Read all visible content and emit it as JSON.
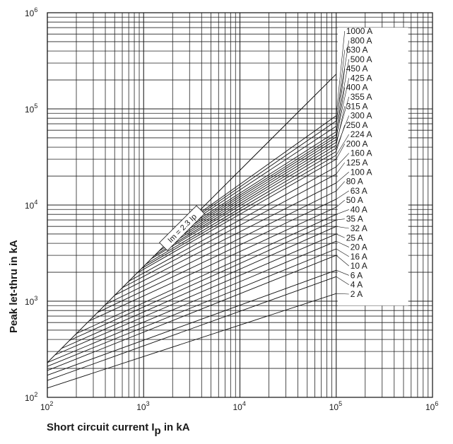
{
  "chart_data": {
    "type": "line",
    "title": "",
    "xlabel": "Short circuit current I",
    "xlabel_sub": "p",
    "xlabel_suffix": " in kA",
    "ylabel": "Peak let-thru in kA",
    "x_scale": "log",
    "y_scale": "log",
    "xlim": [
      100,
      1000000
    ],
    "ylim": [
      100,
      1000000
    ],
    "grid": true,
    "x_ticks": [
      {
        "base": "10",
        "exp": "2"
      },
      {
        "base": "10",
        "exp": "3"
      },
      {
        "base": "10",
        "exp": "4"
      },
      {
        "base": "10",
        "exp": "5"
      },
      {
        "base": "10",
        "exp": "6"
      }
    ],
    "y_ticks": [
      {
        "base": "10",
        "exp": "2"
      },
      {
        "base": "10",
        "exp": "3"
      },
      {
        "base": "10",
        "exp": "4"
      },
      {
        "base": "10",
        "exp": "5"
      },
      {
        "base": "10",
        "exp": "6"
      }
    ],
    "reference_line": {
      "label": "Im = 2.3 Ip",
      "points": [
        [
          100,
          230
        ],
        [
          100000,
          230000
        ]
      ]
    },
    "series": [
      {
        "name": "1000 A",
        "points": [
          [
            3100,
            7130
          ],
          [
            100000,
            85000
          ]
        ]
      },
      {
        "name": "800 A",
        "points": [
          [
            2800,
            6440
          ],
          [
            100000,
            75000
          ]
        ]
      },
      {
        "name": "630 A",
        "points": [
          [
            2500,
            5750
          ],
          [
            100000,
            66000
          ]
        ]
      },
      {
        "name": "500 A",
        "points": [
          [
            2200,
            5060
          ],
          [
            100000,
            58000
          ]
        ]
      },
      {
        "name": "450 A",
        "points": [
          [
            2000,
            4600
          ],
          [
            100000,
            54000
          ]
        ]
      },
      {
        "name": "425 A",
        "points": [
          [
            1800,
            4140
          ],
          [
            100000,
            51000
          ]
        ]
      },
      {
        "name": "400 A",
        "points": [
          [
            1600,
            3680
          ],
          [
            100000,
            48000
          ]
        ]
      },
      {
        "name": "355 A",
        "points": [
          [
            1450,
            3335
          ],
          [
            100000,
            45000
          ]
        ]
      },
      {
        "name": "315 A",
        "points": [
          [
            1300,
            2990
          ],
          [
            100000,
            42000
          ]
        ]
      },
      {
        "name": "300 A",
        "points": [
          [
            1200,
            2760
          ],
          [
            100000,
            39000
          ]
        ]
      },
      {
        "name": "250 A",
        "points": [
          [
            1050,
            2415
          ],
          [
            100000,
            36000
          ]
        ]
      },
      {
        "name": "224 A",
        "points": [
          [
            950,
            2185
          ],
          [
            100000,
            33000
          ]
        ]
      },
      {
        "name": "200 A",
        "points": [
          [
            850,
            1955
          ],
          [
            100000,
            30000
          ]
        ]
      },
      {
        "name": "160 A",
        "points": [
          [
            700,
            1610
          ],
          [
            100000,
            25000
          ]
        ]
      },
      {
        "name": "125 A",
        "points": [
          [
            600,
            1380
          ],
          [
            100000,
            21000
          ]
        ]
      },
      {
        "name": "100 A",
        "points": [
          [
            500,
            1150
          ],
          [
            100000,
            17000
          ]
        ]
      },
      {
        "name": "80 A",
        "points": [
          [
            400,
            920
          ],
          [
            100000,
            14000
          ]
        ]
      },
      {
        "name": "63 A",
        "points": [
          [
            330,
            760
          ],
          [
            100000,
            11500
          ]
        ]
      },
      {
        "name": "50 A",
        "points": [
          [
            270,
            620
          ],
          [
            100000,
            9500
          ]
        ]
      },
      {
        "name": "40 A",
        "points": [
          [
            200,
            460
          ],
          [
            100000,
            8000
          ]
        ]
      },
      {
        "name": "35 A",
        "points": [
          [
            170,
            391
          ],
          [
            100000,
            7000
          ]
        ]
      },
      {
        "name": "32 A",
        "points": [
          [
            140,
            322
          ],
          [
            100000,
            6000
          ]
        ]
      },
      {
        "name": "25 A",
        "points": [
          [
            120,
            276
          ],
          [
            100000,
            5000
          ]
        ]
      },
      {
        "name": "20 A",
        "points": [
          [
            100,
            230
          ],
          [
            100000,
            4200
          ]
        ]
      },
      {
        "name": "16 A",
        "points": [
          [
            100,
            210
          ],
          [
            100000,
            3500
          ]
        ]
      },
      {
        "name": "10 A",
        "points": [
          [
            100,
            190
          ],
          [
            100000,
            3000
          ]
        ]
      },
      {
        "name": "6 A",
        "points": [
          [
            100,
            170
          ],
          [
            100000,
            2100
          ]
        ]
      },
      {
        "name": "4 A",
        "points": [
          [
            100,
            150
          ],
          [
            100000,
            1800
          ]
        ]
      },
      {
        "name": "2 A",
        "points": [
          [
            100,
            125
          ],
          [
            100000,
            1200
          ]
        ]
      }
    ]
  }
}
